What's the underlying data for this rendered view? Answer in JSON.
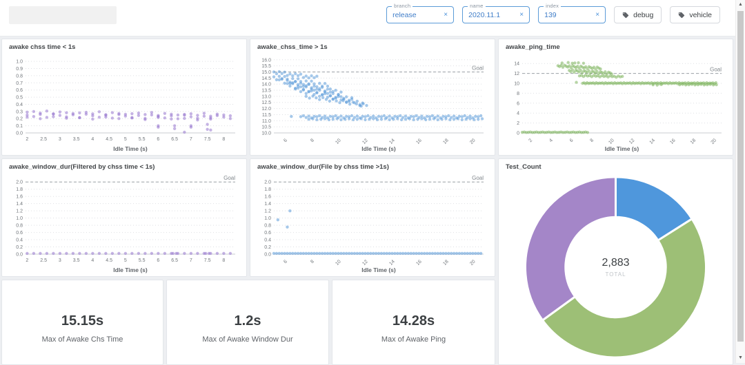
{
  "topbar": {
    "filters": [
      {
        "label": "branch",
        "value": "release"
      },
      {
        "label": "name",
        "value": "2020.11.1"
      },
      {
        "label": "index",
        "value": "139"
      }
    ],
    "chips": [
      {
        "label": "debug"
      },
      {
        "label": "vehicle"
      }
    ]
  },
  "icons": {
    "clear": "×",
    "scroll_up": "▲",
    "scroll_down": "▼"
  },
  "kpis": [
    {
      "value": "15.15s",
      "label": "Max of Awake Chs Time"
    },
    {
      "value": "1.2s",
      "label": "Max of Awake Window Dur"
    },
    {
      "value": "14.28s",
      "label": "Max of Awake Ping"
    }
  ],
  "chart_data": [
    {
      "type": "scatter",
      "title": "awake chss time < 1s",
      "xlabel": "Idle Time (s)",
      "color": "#9575cd",
      "x_range": [
        1.95,
        8.35
      ],
      "y_range": [
        0,
        1.04
      ],
      "x_ticks": [
        "2",
        "2.5",
        "3",
        "3.5",
        "4",
        "4.5",
        "5",
        "5.5",
        "6",
        "6.5",
        "7",
        "7.5",
        "8"
      ],
      "y_ticks": [
        "0.0",
        "0.1",
        "0.2",
        "0.3",
        "0.4",
        "0.5",
        "0.6",
        "0.7",
        "0.8",
        "0.9",
        "1.0"
      ],
      "rotate_x_ticks": false,
      "goal": null,
      "goal_label": "",
      "runs": [
        {
          "x0": 2.0,
          "x1": 8.2,
          "step": 0.2,
          "y0": 0.29,
          "y1": 0.25,
          "jitter": [
            0,
            0.01,
            -0.01,
            0.02,
            -0.02,
            0.01,
            0,
            -0.01
          ]
        },
        {
          "x0": 2.0,
          "x1": 8.2,
          "step": 0.2,
          "y0": 0.25,
          "y1": 0.22,
          "jitter": [
            0,
            -0.02,
            0.01,
            -0.03,
            0.02
          ]
        },
        {
          "x0": 2.0,
          "x1": 7.8,
          "step": 0.4,
          "y0": 0.22,
          "y1": 0.2,
          "jitter": [
            0,
            -0.02,
            0.01,
            -0.01
          ]
        }
      ],
      "points": [
        [
          6.0,
          0.1
        ],
        [
          6.0,
          0.08
        ],
        [
          6.5,
          0.1
        ],
        [
          6.5,
          0.06
        ],
        [
          6.8,
          0.01
        ],
        [
          7.0,
          0.1
        ],
        [
          7.0,
          0.08
        ],
        [
          7.5,
          0.12
        ],
        [
          7.5,
          0.05
        ],
        [
          7.6,
          0.04
        ]
      ]
    },
    {
      "type": "scatter",
      "title": "awake_chss_time > 1s",
      "xlabel": "Idle Time (s)",
      "color": "#5b9bd9",
      "x_range": [
        5,
        20.6
      ],
      "y_range": [
        10,
        16.1
      ],
      "x_ticks": [
        "6",
        "8",
        "10",
        "12",
        "14",
        "16",
        "18",
        "20"
      ],
      "y_ticks": [
        "10.0",
        "10.5",
        "11.0",
        "11.5",
        "12.0",
        "12.5",
        "13.0",
        "13.5",
        "14.0",
        "14.5",
        "15.0",
        "15.5",
        "16.0"
      ],
      "rotate_x_ticks": true,
      "goal": 15,
      "goal_label": "Goal",
      "runs": [
        {
          "x0": 5.0,
          "x1": 8.2,
          "step": 0.2,
          "y0": 15.0,
          "y1": 14.55,
          "jitter": [
            0,
            -0.12,
            0.08,
            -0.05,
            0.1,
            -0.15
          ]
        },
        {
          "x0": 5.0,
          "x1": 9.2,
          "step": 0.2,
          "y0": 14.6,
          "y1": 13.8,
          "jitter": [
            0,
            -0.2,
            0.12,
            -0.08,
            0.18
          ]
        },
        {
          "x0": 5.4,
          "x1": 10.0,
          "step": 0.2,
          "y0": 14.35,
          "y1": 13.25,
          "jitter": [
            0,
            0.15,
            -0.18,
            0.1,
            -0.1
          ]
        },
        {
          "x0": 6.0,
          "x1": 10.8,
          "step": 0.2,
          "y0": 14.05,
          "y1": 12.75,
          "jitter": [
            0,
            -0.15,
            0.1,
            -0.22,
            0.14
          ]
        },
        {
          "x0": 6.6,
          "x1": 11.6,
          "step": 0.2,
          "y0": 13.6,
          "y1": 12.45,
          "jitter": [
            0,
            0.12,
            -0.12,
            0.06,
            -0.18
          ]
        },
        {
          "x0": 7.4,
          "x1": 11.9,
          "step": 0.25,
          "y0": 13.0,
          "y1": 12.25,
          "jitter": [
            0,
            -0.1,
            0.1
          ]
        },
        {
          "x0": 7.0,
          "x1": 20.4,
          "step": 0.2,
          "y0": 11.33,
          "jitter": [
            0,
            0.08,
            -0.06,
            0.05,
            -0.1,
            0.03
          ]
        },
        {
          "x0": 7.6,
          "x1": 20.4,
          "step": 0.3,
          "y0": 11.12,
          "jitter": [
            0,
            0.04,
            -0.04
          ]
        }
      ],
      "points": [
        [
          6.3,
          11.35
        ],
        [
          11.5,
          12.2
        ]
      ]
    },
    {
      "type": "scatter",
      "title": "awake_ping_time",
      "xlabel": "Idle Time (s)",
      "color": "#7cb35b",
      "x_range": [
        1,
        20.5
      ],
      "y_range": [
        0,
        15
      ],
      "x_ticks": [
        "2",
        "4",
        "6",
        "8",
        "10",
        "12",
        "14",
        "16",
        "18",
        "20"
      ],
      "y_ticks": [
        "0",
        "2",
        "4",
        "6",
        "8",
        "10",
        "12",
        "14"
      ],
      "rotate_x_ticks": true,
      "goal": 12,
      "goal_label": "Goal",
      "runs": [
        {
          "x0": 1.0,
          "x1": 7.4,
          "step": 0.2,
          "y0": 0.12,
          "jitter": [
            0,
            0.06,
            -0.03
          ]
        },
        {
          "x0": 4.5,
          "x1": 8.6,
          "step": 0.16,
          "y0": 13.55,
          "y1": 13.05,
          "jitter": [
            0,
            -0.15,
            0.12,
            -0.25,
            0.18
          ]
        },
        {
          "x0": 5.6,
          "x1": 9.8,
          "step": 0.16,
          "y0": 12.6,
          "y1": 12.1,
          "jitter": [
            0,
            -0.22,
            0.15,
            -0.3,
            0.1
          ]
        },
        {
          "x0": 6.6,
          "x1": 10.8,
          "step": 0.2,
          "y0": 11.5,
          "y1": 11.3,
          "jitter": [
            0,
            0.1,
            -0.1,
            0.15
          ]
        },
        {
          "x0": 6.9,
          "x1": 20.0,
          "step": 0.15,
          "y0": 10.0,
          "jitter": [
            0,
            0.1,
            -0.08,
            0.12,
            -0.05,
            0.06
          ]
        },
        {
          "x0": 16.4,
          "x1": 20.0,
          "step": 0.3,
          "y0": 9.72,
          "jitter": [
            0,
            0.06,
            -0.04
          ]
        }
      ],
      "points": [
        [
          4.9,
          14.1
        ],
        [
          5.5,
          14.2
        ],
        [
          5.9,
          14.05
        ],
        [
          6.15,
          14.1
        ],
        [
          6.5,
          14.15
        ],
        [
          7.0,
          14.05
        ],
        [
          6.3,
          10.2
        ],
        [
          13.8,
          9.7
        ],
        [
          14.2,
          9.65
        ],
        [
          14.6,
          9.75
        ]
      ]
    },
    {
      "type": "scatter",
      "title": "awake_window_dur(Filtered by chss time < 1s)",
      "xlabel": "Idle Time (s)",
      "color": "#9575cd",
      "x_range": [
        1.95,
        8.35
      ],
      "y_range": [
        0,
        2.1
      ],
      "x_ticks": [
        "2",
        "2.5",
        "3",
        "3.5",
        "4",
        "4.5",
        "5",
        "5.5",
        "6",
        "6.5",
        "7",
        "7.5",
        "8"
      ],
      "y_ticks": [
        "0.0",
        "0.2",
        "0.4",
        "0.6",
        "0.8",
        "1.0",
        "1.2",
        "1.4",
        "1.6",
        "1.8",
        "2.0"
      ],
      "rotate_x_ticks": false,
      "goal": 2.0,
      "goal_label": "Goal",
      "runs": [
        {
          "x0": 2.0,
          "x1": 8.2,
          "step": 0.2,
          "y0": 0.02,
          "jitter": [
            0
          ]
        }
      ],
      "points": [
        [
          6.45,
          0.02
        ],
        [
          6.55,
          0.02
        ],
        [
          7.45,
          0.02
        ],
        [
          7.55,
          0.02
        ]
      ]
    },
    {
      "type": "scatter",
      "title": "awake_window_dur(File by chss time >1s)",
      "xlabel": "Idle Time (s)",
      "color": "#5b9bd9",
      "x_range": [
        5,
        20.6
      ],
      "y_range": [
        0,
        2.1
      ],
      "x_ticks": [
        "6",
        "8",
        "10",
        "12",
        "14",
        "16",
        "18",
        "20"
      ],
      "y_ticks": [
        "0.0",
        "0.2",
        "0.4",
        "0.6",
        "0.8",
        "1.0",
        "1.2",
        "1.4",
        "1.6",
        "1.8",
        "2.0"
      ],
      "rotate_x_ticks": true,
      "goal": 2.0,
      "goal_label": "Goal",
      "runs": [
        {
          "x0": 5.0,
          "x1": 20.4,
          "step": 0.2,
          "y0": 0.02,
          "jitter": [
            0
          ]
        }
      ],
      "points": [
        [
          5.3,
          0.95
        ],
        [
          6.0,
          0.75
        ],
        [
          6.2,
          1.2
        ]
      ]
    },
    {
      "type": "pie",
      "title": "Test_Count",
      "total": "2,883",
      "total_label": "TOTAL",
      "slices": [
        {
          "name": "blue-slice",
          "pct": 16,
          "color": "#4f97dc"
        },
        {
          "name": "green-slice",
          "pct": 49,
          "color": "#9dbf76"
        },
        {
          "name": "purple-slice",
          "pct": 35,
          "color": "#a486c8"
        }
      ]
    }
  ]
}
